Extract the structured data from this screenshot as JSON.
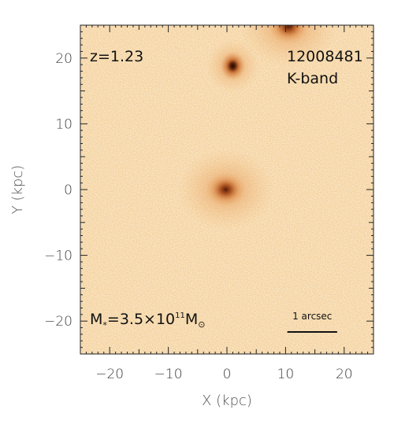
{
  "chart_data": {
    "type": "heatmap",
    "title": "",
    "xlabel": "X (kpc)",
    "ylabel": "Y (kpc)",
    "xlim": [
      -25,
      25
    ],
    "ylim": [
      -25,
      25
    ],
    "x_ticks": [
      -20,
      -10,
      0,
      10,
      20
    ],
    "y_ticks": [
      -20,
      -10,
      0,
      10,
      20
    ],
    "x_tick_labels": [
      "−20",
      "−10",
      "0",
      "10",
      "20"
    ],
    "y_tick_labels": [
      "−20",
      "−10",
      "0",
      "10",
      "20"
    ],
    "grid": false,
    "colormap": [
      "#fff9ef",
      "#f6cf96",
      "#e59a4e",
      "#c96521",
      "#7a2f0a",
      "#2a0d02"
    ],
    "sources": [
      {
        "x": 1.0,
        "y": 18.8,
        "intensity": 1.0
      },
      {
        "x": -0.2,
        "y": 0.0,
        "intensity": 0.55
      },
      {
        "x": 10.5,
        "y": 24.8,
        "intensity": 0.7
      }
    ],
    "annotations": {
      "redshift": "z=1.23",
      "object_id": "12008481",
      "band": "K-band",
      "mass": {
        "base": "M",
        "sub": "*",
        "eq": "=3.5×10",
        "exp": "11",
        "unit": "M",
        "unit_sub": "⊙"
      },
      "scalebar_label": "1 arcsec",
      "scalebar_length_kpc": 8.5
    }
  }
}
